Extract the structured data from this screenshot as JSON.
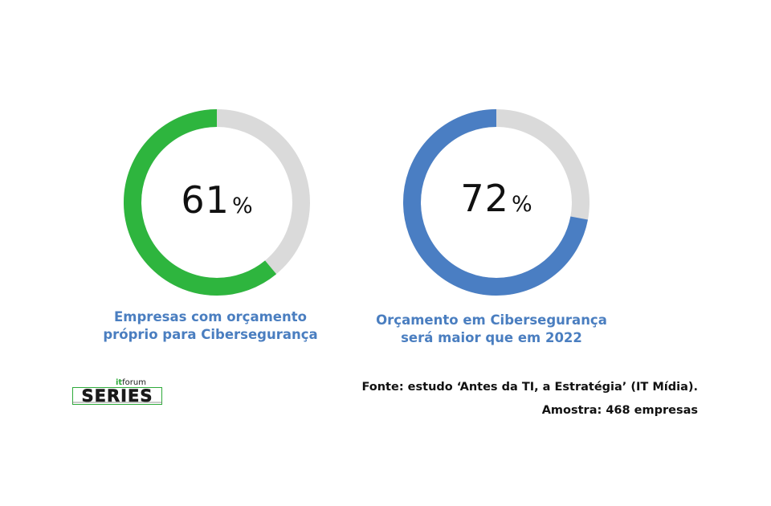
{
  "chart_data": [
    {
      "type": "pie",
      "variant": "donut",
      "value": 61,
      "unit": "%",
      "caption_lines": [
        "Empresas com orçamento",
        "próprio para Cibersegurança"
      ],
      "color": "#2eb53e",
      "remainder_color": "#dadada",
      "caption_color": "#4a7ec0"
    },
    {
      "type": "pie",
      "variant": "donut",
      "value": 72,
      "unit": "%",
      "caption_lines": [
        "Orçamento em Cibersegurança",
        "será maior que em 2022"
      ],
      "color": "#4a7ec3",
      "remainder_color": "#dadada",
      "caption_color": "#4a7ec0"
    }
  ],
  "source": {
    "line1": "Fonte: estudo ‘Antes da TI, a Estratégia’ (IT Mídia).",
    "line2": "Amostra: 468 empresas"
  },
  "logo": {
    "prefix": "it",
    "prefix_rest": "forum",
    "word": "SERIES",
    "icon": "itforum-series-logo"
  }
}
